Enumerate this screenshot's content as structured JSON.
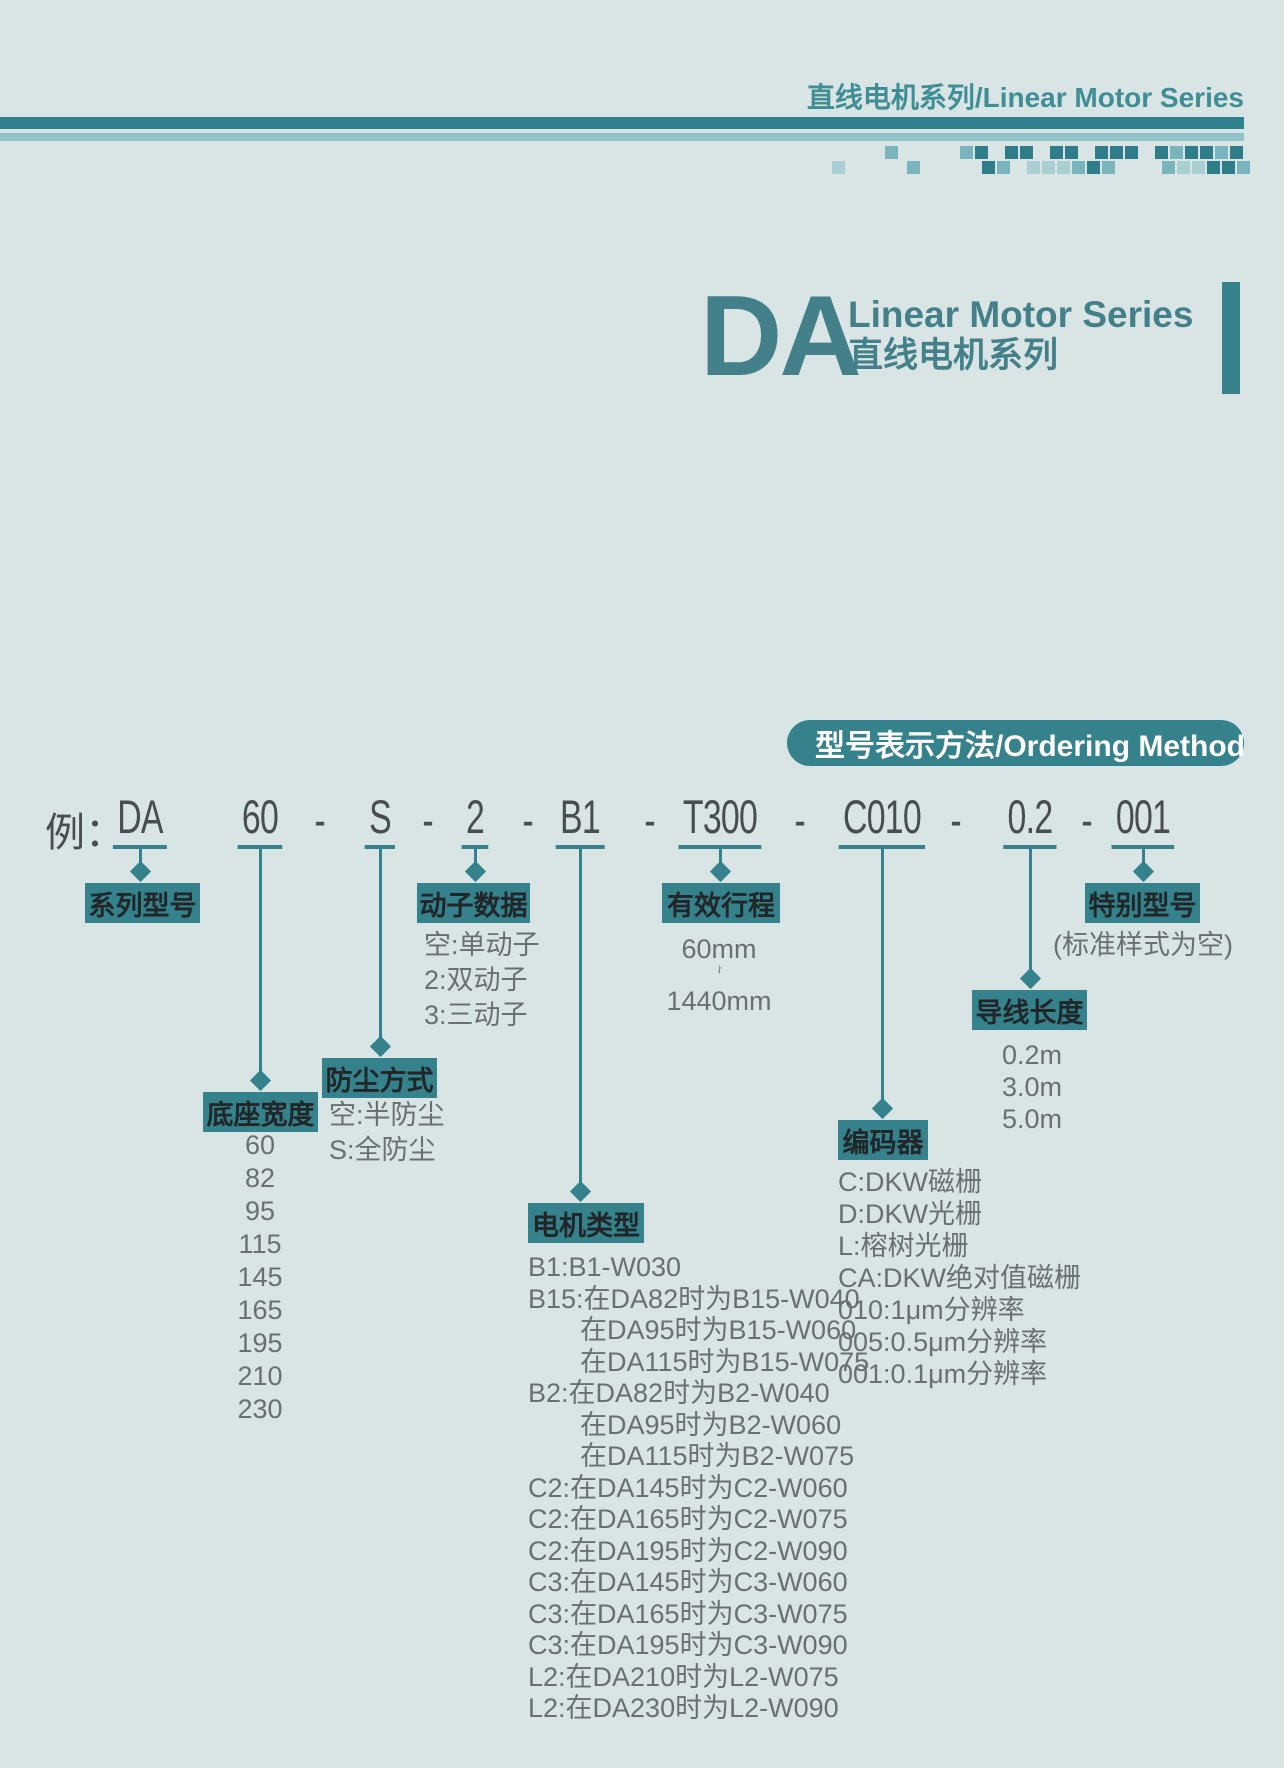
{
  "colors": {
    "background": "#d9e5e4",
    "accent": "#35828c",
    "accent_bar_dark": "#2e818d",
    "accent_bar_light": "#8fc3c9",
    "mosaic_dark": "#2e7d89",
    "mosaic_medium": "#7ab4bc",
    "mosaic_light": "#aacfd3",
    "header_text": "#3f8e96",
    "title_text": "#44808a",
    "box_text": "#212629",
    "list_text": "#696f73",
    "model_text": "#484d51",
    "banner_text": "#ffffff"
  },
  "header": {
    "title": "直线电机系列/Linear Motor Series"
  },
  "series": {
    "code": "DA",
    "title_en": "Linear Motor Series",
    "title_cn": "直线电机系列"
  },
  "banner": {
    "title": "型号表示方法/Ordering Method"
  },
  "model_example": {
    "prefix": "例：",
    "parts": [
      "DA",
      "60",
      "S",
      "2",
      "B1",
      "T300",
      "C010",
      "0.2",
      "001"
    ],
    "separator": "-"
  },
  "diagram": {
    "groups": [
      {
        "id": "series_model",
        "label": "系列型号",
        "items": []
      },
      {
        "id": "base_width",
        "label": "底座宽度",
        "items": [
          "60",
          "82",
          "95",
          "115",
          "145",
          "165",
          "195",
          "210",
          "230"
        ]
      },
      {
        "id": "dust_proof",
        "label": "防尘方式",
        "items": [
          "空:半防尘",
          "S:全防尘"
        ]
      },
      {
        "id": "mover_data",
        "label": "动子数据",
        "items": [
          "空:单动子",
          "2:双动子",
          "3:三动子"
        ]
      },
      {
        "id": "motor_type",
        "label": "电机类型",
        "items": [
          "B1:B1-W030",
          "B15:在DA82时为B15-W040",
          "在DA95时为B15-W060",
          "在DA115时为B15-W075",
          "B2:在DA82时为B2-W040",
          "在DA95时为B2-W060",
          "在DA115时为B2-W075",
          "C2:在DA145时为C2-W060",
          "C2:在DA165时为C2-W075",
          "C2:在DA195时为C2-W090",
          "C3:在DA145时为C3-W060",
          "C3:在DA165时为C3-W075",
          "C3:在DA195时为C3-W090",
          "L2:在DA210时为L2-W075",
          "L2:在DA230时为L2-W090"
        ]
      },
      {
        "id": "stroke",
        "label": "有效行程",
        "items": [
          "60mm",
          "~",
          "1440mm"
        ]
      },
      {
        "id": "encoder",
        "label": "编码器",
        "items": [
          "C:DKW磁栅",
          "D:DKW光栅",
          "L:榕树光栅",
          "CA:DKW绝对值磁栅",
          "010:1μm分辨率",
          "005:0.5μm分辨率",
          "001:0.1μm分辨率"
        ]
      },
      {
        "id": "wire_length",
        "label": "导线长度",
        "items": [
          "0.2m",
          "3.0m",
          "5.0m"
        ]
      },
      {
        "id": "special_model",
        "label": "特别型号",
        "items": [
          "(标准样式为空)"
        ]
      }
    ]
  }
}
